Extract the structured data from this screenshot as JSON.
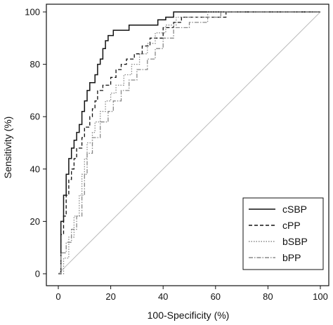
{
  "chart_data": {
    "type": "line",
    "title": "",
    "xlabel": "100-Specificity (%)",
    "ylabel": "Sensitivity (%)",
    "xlim": [
      0,
      100
    ],
    "ylim": [
      0,
      100
    ],
    "xticks": [
      "0",
      "20",
      "40",
      "60",
      "80",
      "100"
    ],
    "yticks": [
      "0",
      "20",
      "40",
      "60",
      "80",
      "100"
    ],
    "grid": false,
    "legend_position": "bottom-right",
    "reference_line": {
      "x": [
        0,
        100
      ],
      "y": [
        0,
        100
      ],
      "color": "#bbbbbb"
    },
    "series": [
      {
        "name": "cSBP",
        "style": "solid",
        "color": "#111111",
        "x": [
          0,
          1,
          1,
          2,
          2,
          3,
          3,
          4,
          4,
          5,
          5,
          6,
          6,
          7,
          7,
          8,
          8,
          9,
          9,
          10,
          10,
          11,
          11,
          12,
          12,
          13,
          13,
          14,
          14,
          15,
          15,
          16,
          16,
          17,
          17,
          18,
          18,
          19,
          19,
          20,
          20,
          21,
          21,
          23,
          23,
          27,
          27,
          38,
          38,
          41,
          41,
          44,
          44,
          100
        ],
        "y": [
          0,
          0,
          20,
          20,
          30,
          30,
          38,
          38,
          44,
          44,
          48,
          48,
          51,
          51,
          54,
          54,
          57,
          57,
          62,
          62,
          66,
          66,
          70,
          70,
          73,
          73,
          73,
          73,
          76,
          76,
          80,
          80,
          82,
          82,
          86,
          86,
          89,
          89,
          91,
          91,
          91,
          91,
          93,
          93,
          93,
          93,
          95,
          95,
          97,
          97,
          98,
          98,
          100,
          100
        ]
      },
      {
        "name": "cPP",
        "style": "dashed",
        "color": "#111111",
        "x": [
          0,
          1,
          1,
          2,
          2,
          3,
          3,
          4,
          4,
          5,
          5,
          6,
          6,
          7,
          7,
          9,
          9,
          10,
          10,
          12,
          12,
          13,
          13,
          14,
          14,
          15,
          15,
          17,
          17,
          20,
          20,
          22,
          22,
          24,
          24,
          26,
          26,
          29,
          29,
          32,
          32,
          35,
          35,
          40,
          40,
          44,
          44,
          47,
          47,
          64,
          64,
          100
        ],
        "y": [
          0,
          0,
          15,
          15,
          22,
          22,
          30,
          30,
          36,
          36,
          40,
          40,
          44,
          44,
          48,
          48,
          52,
          52,
          56,
          56,
          60,
          60,
          63,
          63,
          66,
          66,
          70,
          70,
          72,
          72,
          75,
          75,
          78,
          78,
          80,
          80,
          82,
          82,
          84,
          84,
          87,
          87,
          90,
          90,
          94,
          94,
          96,
          96,
          98,
          98,
          100,
          100
        ]
      },
      {
        "name": "bSBP",
        "style": "dotted",
        "color": "#888888",
        "x": [
          0,
          2,
          2,
          4,
          4,
          6,
          6,
          8,
          8,
          9,
          9,
          10,
          10,
          11,
          11,
          13,
          13,
          14,
          14,
          16,
          16,
          18,
          18,
          20,
          20,
          22,
          22,
          25,
          25,
          28,
          28,
          31,
          31,
          34,
          34,
          37,
          37,
          41,
          41,
          45,
          45,
          57,
          57,
          100
        ],
        "y": [
          0,
          0,
          6,
          6,
          14,
          14,
          22,
          22,
          30,
          30,
          38,
          38,
          44,
          44,
          50,
          50,
          54,
          54,
          58,
          58,
          62,
          62,
          66,
          66,
          69,
          69,
          72,
          72,
          76,
          76,
          80,
          80,
          84,
          84,
          88,
          88,
          92,
          92,
          95,
          95,
          98,
          98,
          100,
          100
        ]
      },
      {
        "name": "bPP",
        "style": "dashdot",
        "color": "#888888",
        "x": [
          0,
          1,
          1,
          3,
          3,
          5,
          5,
          7,
          7,
          9,
          9,
          10,
          10,
          11,
          11,
          13,
          13,
          16,
          16,
          19,
          19,
          21,
          21,
          24,
          24,
          27,
          27,
          30,
          30,
          34,
          34,
          37,
          37,
          40,
          40,
          44,
          44,
          50,
          50,
          57,
          57,
          62,
          62,
          100
        ],
        "y": [
          0,
          0,
          8,
          8,
          12,
          12,
          17,
          17,
          22,
          22,
          30,
          30,
          38,
          38,
          46,
          46,
          52,
          52,
          58,
          58,
          62,
          62,
          66,
          66,
          70,
          70,
          74,
          74,
          78,
          78,
          82,
          82,
          86,
          86,
          90,
          90,
          94,
          94,
          96,
          96,
          98,
          98,
          100,
          100
        ]
      }
    ]
  }
}
